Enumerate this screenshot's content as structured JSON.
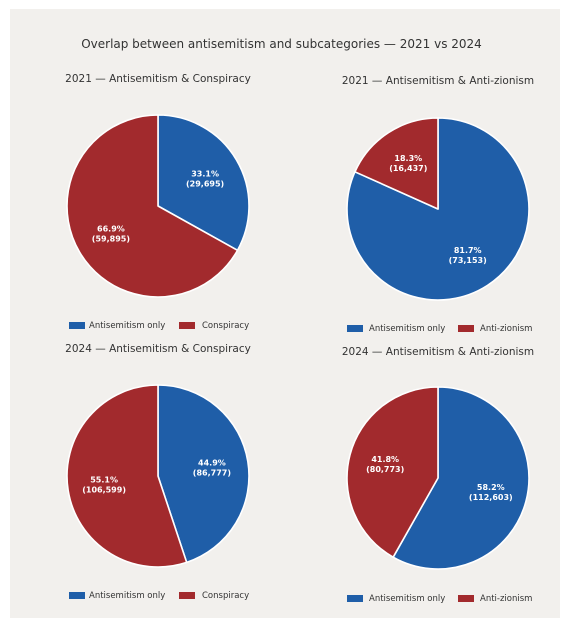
{
  "title": "Overlap between antisemitism and subcategories — 2021 vs 2024",
  "colors": {
    "blue": "#1f5ea8",
    "red": "#a22a2d",
    "edge": "#ffffff",
    "text": "#333333"
  },
  "chart_data": [
    {
      "type": "pie",
      "title": "2021 — Antisemitism & Conspiracy",
      "slices": [
        {
          "name": "Antisemitism only",
          "percent": 33.1,
          "count": "29,695",
          "color": "#1f5ea8"
        },
        {
          "name": "Conspiracy",
          "percent": 66.9,
          "count": "59,895",
          "color": "#a22a2d"
        }
      ],
      "legend": [
        "Antisemitism only",
        "Conspiracy"
      ],
      "legend_position": "bottom"
    },
    {
      "type": "pie",
      "title": "2021 — Antisemitism & Anti-zionism",
      "slices": [
        {
          "name": "Antisemitism only",
          "percent": 81.7,
          "count": "73,153",
          "color": "#1f5ea8"
        },
        {
          "name": "Anti-zionism",
          "percent": 18.3,
          "count": "16,437",
          "color": "#a22a2d"
        }
      ],
      "legend": [
        "Antisemitism only",
        "Anti-zionism"
      ],
      "legend_position": "bottom"
    },
    {
      "type": "pie",
      "title": "2024 — Antisemitism & Conspiracy",
      "slices": [
        {
          "name": "Antisemitism only",
          "percent": 44.9,
          "count": "86,777",
          "color": "#1f5ea8"
        },
        {
          "name": "Conspiracy",
          "percent": 55.1,
          "count": "106,599",
          "color": "#a22a2d"
        }
      ],
      "legend": [
        "Antisemitism only",
        "Conspiracy"
      ],
      "legend_position": "bottom"
    },
    {
      "type": "pie",
      "title": "2024 — Antisemitism & Anti-zionism",
      "slices": [
        {
          "name": "Antisemitism only",
          "percent": 58.2,
          "count": "112,603",
          "color": "#1f5ea8"
        },
        {
          "name": "Anti-zionism",
          "percent": 41.8,
          "count": "80,773",
          "color": "#a22a2d"
        }
      ],
      "legend": [
        "Antisemitism only",
        "Anti-zionism"
      ],
      "legend_position": "bottom"
    }
  ]
}
